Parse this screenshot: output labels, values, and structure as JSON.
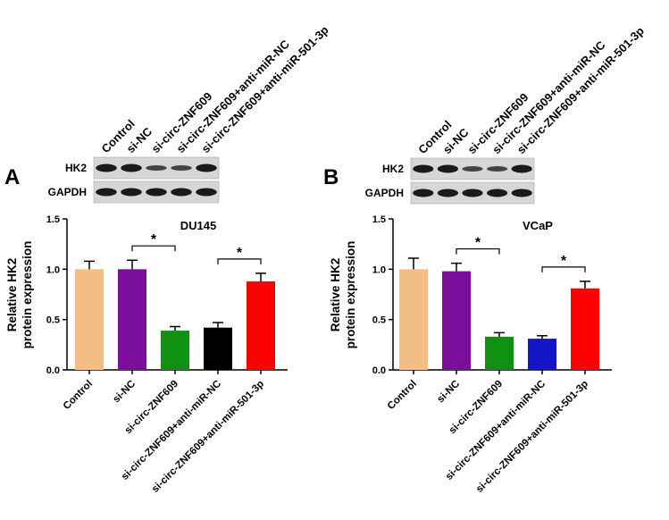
{
  "chart_data": [
    {
      "type": "bar",
      "panel": "A",
      "title": "DU145",
      "ylabel": [
        "Relative HK2",
        "protein expression"
      ],
      "blot_labels": [
        "HK2",
        "GAPDH"
      ],
      "categories": [
        "Control",
        "si-NC",
        "si-circ-ZNF609",
        "si-circ-ZNF609+anti-miR-NC",
        "si-circ-ZNF609+anti-miR-501-3p"
      ],
      "series": [
        {
          "values": [
            1.0,
            1.0,
            0.39,
            0.42,
            0.88
          ],
          "errors": [
            0.08,
            0.09,
            0.04,
            0.05,
            0.08
          ],
          "colors": [
            "#f3be86",
            "#7b0f9b",
            "#119111",
            "#000000",
            "#ff0000"
          ]
        }
      ],
      "ylim": [
        0,
        1.5
      ],
      "yticks": [
        {
          "value": 0,
          "label": "0.0"
        },
        {
          "value": 0.5,
          "label": "0.5"
        },
        {
          "value": 1.0,
          "label": "1.0"
        },
        {
          "value": 1.5,
          "label": "1.5"
        }
      ],
      "significance": [
        {
          "from": 1,
          "to": 2,
          "label": "*"
        },
        {
          "from": 3,
          "to": 4,
          "label": "*"
        }
      ]
    },
    {
      "type": "bar",
      "panel": "B",
      "title": "VCaP",
      "ylabel": [
        "Relative HK2",
        "protein expression"
      ],
      "blot_labels": [
        "HK2",
        "GAPDH"
      ],
      "categories": [
        "Control",
        "si-NC",
        "si-circ-ZNF609",
        "si-circ-ZNF609+anti-miR-NC",
        "si-circ-ZNF609+anti-miR-501-3p"
      ],
      "series": [
        {
          "values": [
            1.0,
            0.98,
            0.33,
            0.31,
            0.81
          ],
          "errors": [
            0.11,
            0.08,
            0.04,
            0.03,
            0.07
          ],
          "colors": [
            "#f3be86",
            "#7b0f9b",
            "#119111",
            "#1515c8",
            "#ff0000"
          ]
        }
      ],
      "ylim": [
        0,
        1.5
      ],
      "yticks": [
        {
          "value": 0,
          "label": "0.0"
        },
        {
          "value": 0.5,
          "label": "0.5"
        },
        {
          "value": 1.0,
          "label": "1.0"
        },
        {
          "value": 1.5,
          "label": "1.5"
        }
      ],
      "significance": [
        {
          "from": 1,
          "to": 2,
          "label": "*"
        },
        {
          "from": 3,
          "to": 4,
          "label": "*"
        }
      ]
    }
  ]
}
